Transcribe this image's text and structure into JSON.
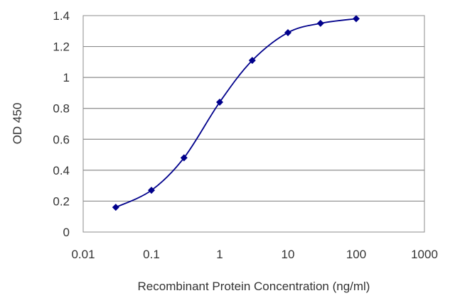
{
  "chart_data": {
    "type": "scatter",
    "xlabel": "Recombinant Protein Concentration (ng/ml)",
    "ylabel": "OD 450",
    "x_scale": "log",
    "xlim": [
      0.01,
      1000
    ],
    "ylim": [
      0,
      1.4
    ],
    "x_ticks": [
      0.01,
      0.1,
      1,
      10,
      100,
      1000
    ],
    "x_tick_labels": [
      "0.01",
      "0.1",
      "1",
      "10",
      "100",
      "1000"
    ],
    "y_ticks": [
      0,
      0.2,
      0.4,
      0.6,
      0.8,
      1,
      1.2,
      1.4
    ],
    "y_tick_labels": [
      "0",
      "0.2",
      "0.4",
      "0.6",
      "0.8",
      "1",
      "1.2",
      "1.4"
    ],
    "grid": "horizontal",
    "legend": "none",
    "fit_curve": "smooth",
    "series": [
      {
        "x": [
          0.03,
          0.1,
          0.3,
          1,
          3,
          10,
          30,
          100
        ],
        "y": [
          0.16,
          0.27,
          0.48,
          0.84,
          1.11,
          1.29,
          1.35,
          1.38
        ],
        "color": "#00008b"
      }
    ]
  }
}
